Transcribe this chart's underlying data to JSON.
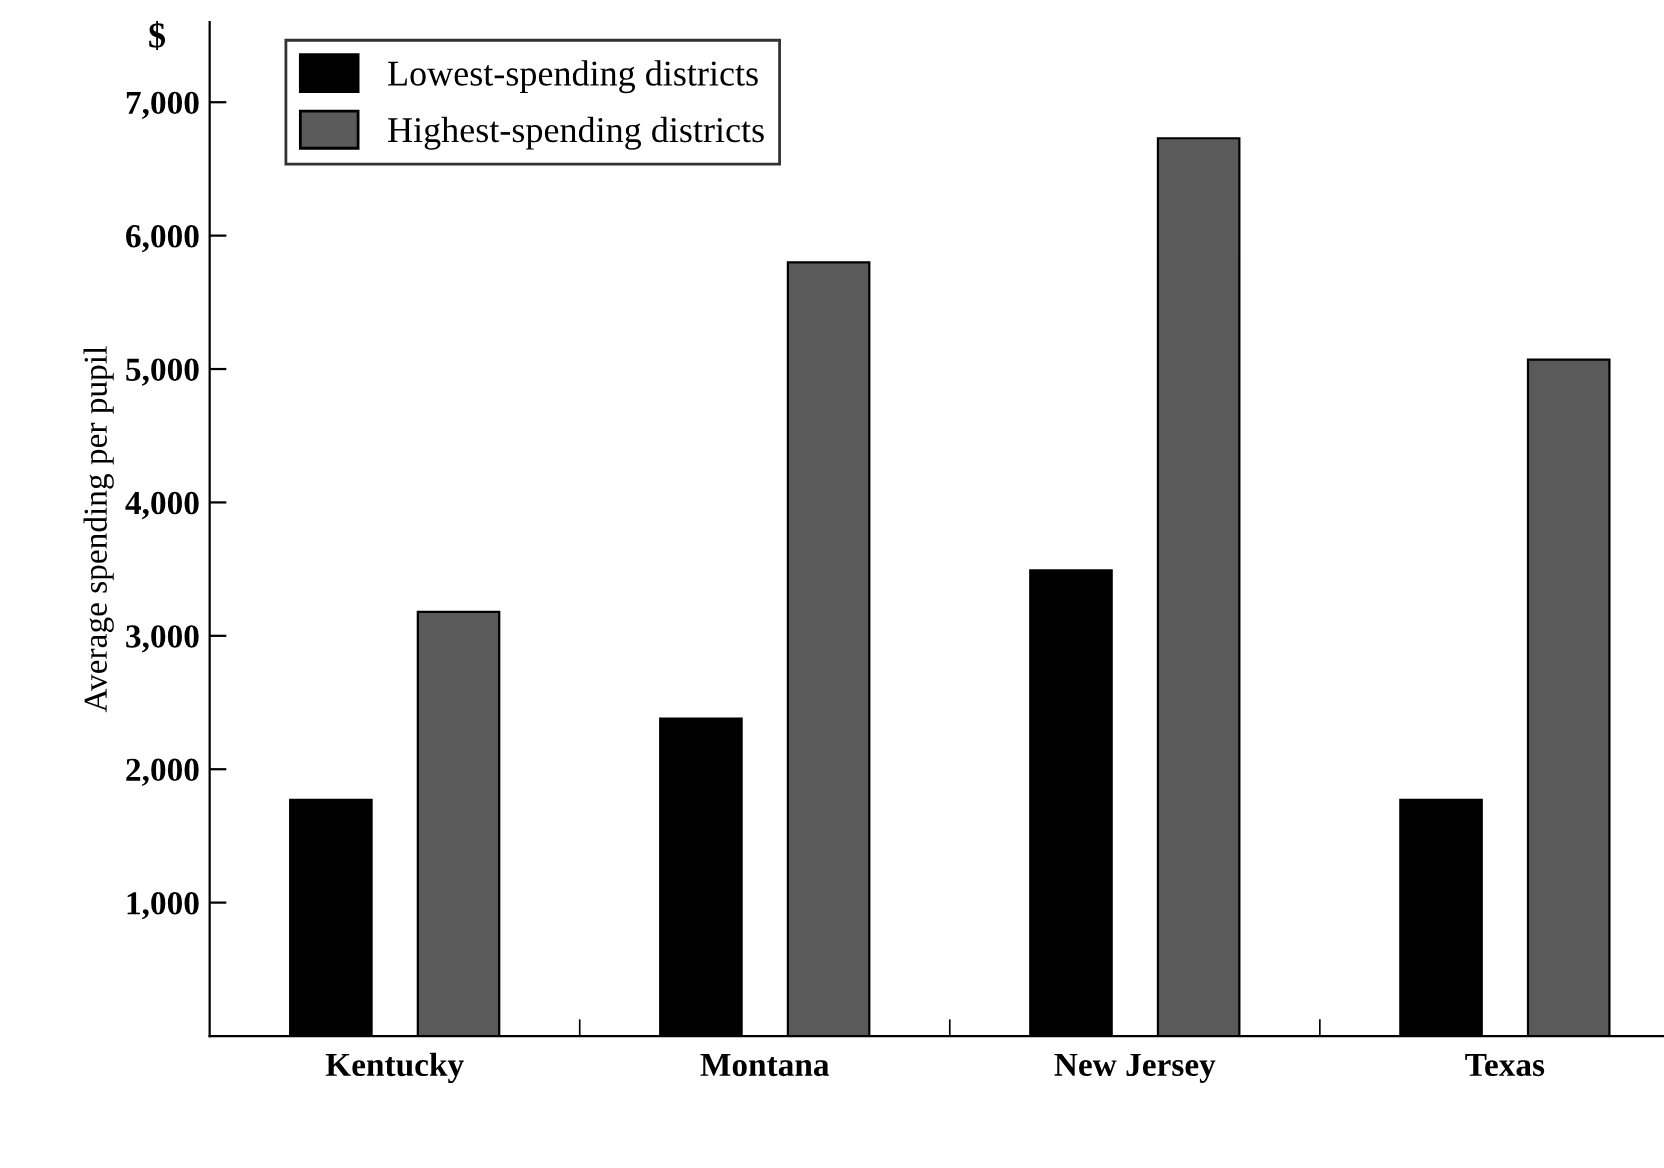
{
  "chart_data": {
    "type": "bar",
    "ylabel": "Average spending per pupil",
    "annotations": [
      "$"
    ],
    "categories": [
      "Kentucky",
      "Montana",
      "New Jersey",
      "Texas"
    ],
    "series": [
      {
        "name": "Lowest-spending districts",
        "color": "#000000",
        "values": [
          1770,
          2380,
          3490,
          1770
        ]
      },
      {
        "name": "Highest-spending districts",
        "color": "#5a5a5a",
        "values": [
          3180,
          5800,
          6730,
          5070
        ]
      }
    ],
    "ylim": [
      0,
      7600
    ],
    "yticks": [
      {
        "value": 1000,
        "label": "1,000"
      },
      {
        "value": 2000,
        "label": "2,000"
      },
      {
        "value": 3000,
        "label": "3,000"
      },
      {
        "value": 4000,
        "label": "4,000"
      },
      {
        "value": 5000,
        "label": "5,000"
      },
      {
        "value": 6000,
        "label": "6,000"
      },
      {
        "value": 7000,
        "label": "7,000"
      }
    ],
    "grid": false,
    "legend": "top left"
  }
}
